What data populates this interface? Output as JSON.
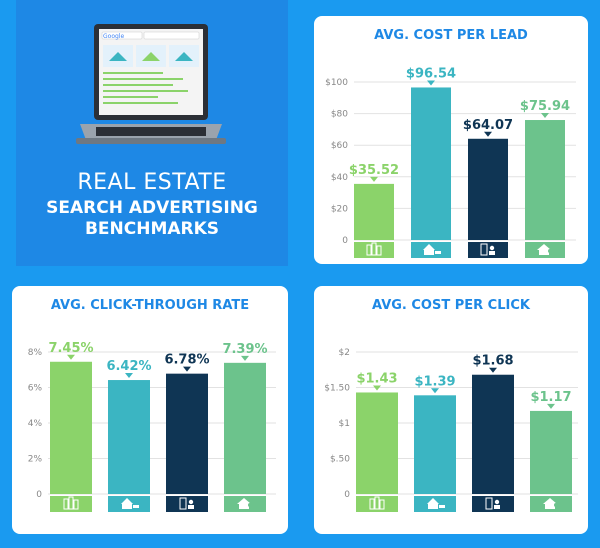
{
  "hero": {
    "line1": "REAL ESTATE",
    "line2": "SEARCH ADVERTISING",
    "line3": "BENCHMARKS",
    "search_logo": "Google"
  },
  "colors": {
    "background": "#1a9af0",
    "panel": "#1e88e5",
    "title": "#1e88e5",
    "green": "#8bd36a",
    "teal": "#3bb5c2",
    "navy": "#0f3554",
    "mint": "#6cc38c"
  },
  "icons": [
    "buildings-icon",
    "house-for-sale-icon",
    "agent-building-icon",
    "house-agent-icon"
  ],
  "chart_data": [
    {
      "type": "bar",
      "title": "AVG. COST PER LEAD",
      "categories": [
        "",
        "",
        "",
        ""
      ],
      "values": [
        35.52,
        96.54,
        64.07,
        75.94
      ],
      "value_labels": [
        "$35.52",
        "$96.54",
        "$64.07",
        "$75.94"
      ],
      "yticks": [
        "0",
        "$20",
        "$40",
        "$60",
        "$80",
        "$100"
      ],
      "ylim": [
        0,
        100
      ],
      "grid": true
    },
    {
      "type": "bar",
      "title": "AVG. CLICK-THROUGH RATE",
      "categories": [
        "",
        "",
        "",
        ""
      ],
      "values": [
        7.45,
        6.42,
        6.78,
        7.39
      ],
      "value_labels": [
        "7.45%",
        "6.42%",
        "6.78%",
        "7.39%"
      ],
      "yticks": [
        "0",
        "2%",
        "4%",
        "6%",
        "8%"
      ],
      "ylim": [
        0,
        8
      ],
      "grid": true
    },
    {
      "type": "bar",
      "title": "AVG. COST PER CLICK",
      "categories": [
        "",
        "",
        "",
        ""
      ],
      "values": [
        1.43,
        1.39,
        1.68,
        1.17
      ],
      "value_labels": [
        "$1.43",
        "$1.39",
        "$1.68",
        "$1.17"
      ],
      "yticks": [
        "0",
        "$.50",
        "$1",
        "$1.50",
        "$2"
      ],
      "ylim": [
        0,
        2
      ],
      "grid": true
    }
  ]
}
